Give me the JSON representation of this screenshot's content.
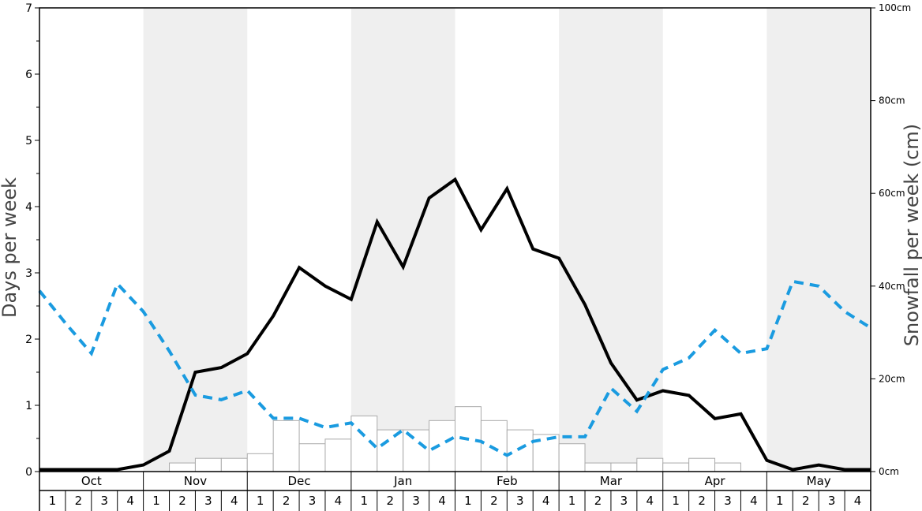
{
  "chart_data": {
    "type": "bar+line",
    "title": "",
    "ylabel_left": "Days per week",
    "ylabel_right": "Snowfall per week (cm)",
    "ylim_left": [
      0,
      7
    ],
    "ylim_right": [
      0,
      100
    ],
    "left_ticks": [
      "0",
      "1",
      "2",
      "3",
      "4",
      "5",
      "6",
      "7"
    ],
    "right_ticks": [
      "0cm",
      "20cm",
      "40cm",
      "60cm",
      "80cm",
      "100cm"
    ],
    "months": [
      "Oct",
      "Nov",
      "Dec",
      "Jan",
      "Feb",
      "Mar",
      "Apr",
      "May"
    ],
    "weeks": [
      "1",
      "2",
      "3",
      "4"
    ],
    "shaded_months": [
      1,
      3,
      5,
      7
    ],
    "colors": {
      "shade": "#efefef",
      "bar_fill": "#ffffff",
      "bar_stroke": "#aaaaaa",
      "solid_line": "#000000",
      "dashed_line": "#1a9be0"
    },
    "series": [
      {
        "kind": "bar",
        "axis": "left",
        "values": [
          0,
          0,
          0,
          0,
          0,
          0.13,
          0.2,
          0.2,
          0.27,
          0.77,
          0.42,
          0.49,
          0.84,
          0.63,
          0.63,
          0.77,
          0.98,
          0.77,
          0.63,
          0.56,
          0.42,
          0.13,
          0.13,
          0.2,
          0.13,
          0.2,
          0.13,
          0,
          0,
          0,
          0,
          0
        ]
      },
      {
        "kind": "line",
        "style": "solid",
        "axis": "left",
        "values": [
          0.03,
          0.03,
          0.03,
          0.03,
          0.1,
          0.31,
          1.5,
          1.57,
          1.78,
          2.35,
          3.08,
          2.8,
          2.6,
          3.77,
          3.09,
          4.13,
          4.41,
          3.65,
          4.27,
          3.36,
          3.22,
          2.52,
          1.64,
          1.08,
          1.22,
          1.15,
          0.8,
          0.87,
          0.17,
          0.03,
          0.1,
          0.03,
          0.03
        ]
      },
      {
        "kind": "line",
        "style": "dashed",
        "axis": "right",
        "values": [
          39,
          32,
          25.5,
          40.5,
          34.5,
          26,
          16.5,
          15.5,
          17.5,
          11.5,
          11.5,
          9.5,
          10.5,
          5,
          9,
          4.5,
          7.5,
          6.5,
          3.5,
          6.5,
          7.5,
          7.5,
          18,
          13,
          22,
          24.5,
          30.5,
          25.5,
          26.5,
          41,
          40,
          34.5,
          31
        ]
      }
    ]
  }
}
